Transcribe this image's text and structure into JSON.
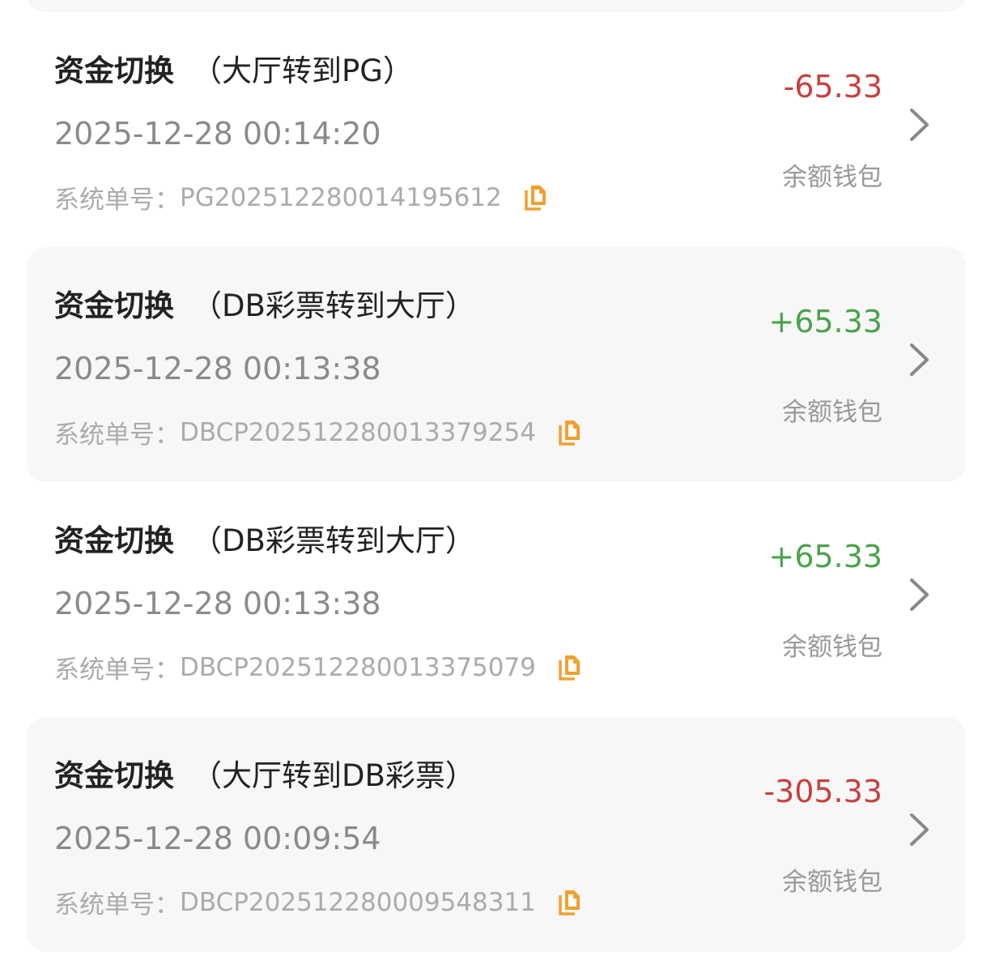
{
  "colors": {
    "negative": "#c8403e",
    "positive": "#4aa34a",
    "copy_icon": "#f0a030"
  },
  "order_label": "系统单号：",
  "records": [
    {
      "title": "资金切换",
      "subtitle": "（大厅转到PG）",
      "datetime": "2025-12-28 00:14:20",
      "order_no": "PG202512280014195612",
      "amount": "-65.33",
      "sign": "negative",
      "wallet": "余额钱包"
    },
    {
      "title": "资金切换",
      "subtitle": "（DB彩票转到大厅）",
      "datetime": "2025-12-28 00:13:38",
      "order_no": "DBCP202512280013379254",
      "amount": "+65.33",
      "sign": "positive",
      "wallet": "余额钱包"
    },
    {
      "title": "资金切换",
      "subtitle": "（DB彩票转到大厅）",
      "datetime": "2025-12-28 00:13:38",
      "order_no": "DBCP202512280013375079",
      "amount": "+65.33",
      "sign": "positive",
      "wallet": "余额钱包"
    },
    {
      "title": "资金切换",
      "subtitle": "（大厅转到DB彩票）",
      "datetime": "2025-12-28 00:09:54",
      "order_no": "DBCP202512280009548311",
      "amount": "-305.33",
      "sign": "negative",
      "wallet": "余额钱包"
    }
  ]
}
